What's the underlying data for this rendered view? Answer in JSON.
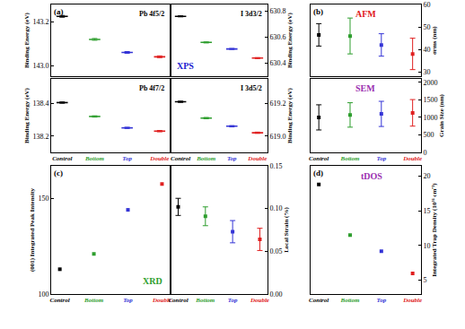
{
  "chart_data": [
    {
      "type": "scatter",
      "label": "(a)",
      "title": "Pb 4f5/2",
      "categories": [
        "Control",
        "Bottom",
        "Top",
        "Double"
      ],
      "colors": [
        "#000000",
        "#2e9e2e",
        "#3434d6",
        "#e02020"
      ],
      "values": [
        143.226,
        143.12,
        143.06,
        143.04
      ],
      "errors": [
        0.004,
        0.004,
        0.004,
        0.004
      ],
      "ylabel": "Binding Energy (eV)",
      "ylim": [
        142.95,
        143.28
      ],
      "yticks": [
        {
          "value": 143,
          "label": "143.0"
        },
        143.2
      ],
      "marker": "dash",
      "tick_labels": "y"
    },
    {
      "type": "scatter",
      "title": "I 3d3/2",
      "annotation": {
        "text": "XPS",
        "color": "#2020d0"
      },
      "categories": [
        "Control",
        "Bottom",
        "Top",
        "Double"
      ],
      "colors": [
        "#000000",
        "#2e9e2e",
        "#3434d6",
        "#e02020"
      ],
      "values": [
        630.76,
        630.56,
        630.51,
        630.44
      ],
      "errors": [
        0.004,
        0.004,
        0.004,
        0.004
      ],
      "ylabel": "Binding Energy (eV)",
      "ylim": [
        630.3,
        630.85
      ],
      "yticks": [
        630.4,
        630.6,
        630.8
      ],
      "marker": "dash",
      "tick_labels": "y"
    },
    {
      "type": "scatter",
      "title": "Pb 4f7/2",
      "categories": [
        "Control",
        "Bottom",
        "Top",
        "Double"
      ],
      "colors": [
        "#000000",
        "#2e9e2e",
        "#3434d6",
        "#e02020"
      ],
      "values": [
        138.405,
        138.32,
        138.25,
        138.23
      ],
      "errors": [
        0.004,
        0.004,
        0.004,
        0.004
      ],
      "ylabel": "Binding Energy (eV)",
      "ylim": [
        138.1,
        138.55
      ],
      "yticks": [
        138.2,
        138.4
      ],
      "marker": "dash"
    },
    {
      "type": "scatter",
      "title": "I 3d5/2",
      "categories": [
        "Control",
        "Bottom",
        "Top",
        "Double"
      ],
      "colors": [
        "#000000",
        "#2e9e2e",
        "#3434d6",
        "#e02020"
      ],
      "values": [
        619.21,
        619.11,
        619.06,
        619.02
      ],
      "errors": [
        0.004,
        0.004,
        0.004,
        0.004
      ],
      "ylabel": "Binding Energy (eV)",
      "ylim": [
        618.9,
        619.35
      ],
      "yticks": [
        {
          "value": 619,
          "label": "619.0"
        },
        619.2
      ],
      "marker": "dash"
    },
    {
      "type": "scatter",
      "label": "(b)",
      "annotation": {
        "text": "AFM",
        "color": "#e02020"
      },
      "categories": [
        "Control",
        "Bottom",
        "Top",
        "Double"
      ],
      "colors": [
        "#000000",
        "#2e9e2e",
        "#3434d6",
        "#e02020"
      ],
      "values": [
        46.5,
        46,
        42,
        38
      ],
      "errors": [
        5,
        8,
        5,
        7
      ],
      "ylabel": "σrms (nm)",
      "ylim": [
        28,
        60
      ],
      "yticks": [
        30,
        40,
        50,
        60
      ],
      "marker": "square",
      "tick_labels": "y"
    },
    {
      "type": "scatter",
      "annotation": {
        "text": "SEM",
        "color": "#9b30b0"
      },
      "categories": [
        "Control",
        "Bottom",
        "Top",
        "Double"
      ],
      "colors": [
        "#000000",
        "#2e9e2e",
        "#3434d6",
        "#e02020"
      ],
      "values": [
        1000,
        1070,
        1100,
        1130
      ],
      "errors": [
        360,
        350,
        360,
        380
      ],
      "ylabel": "Grain Size (nm)",
      "ylim": [
        0,
        2100
      ],
      "yticks": [
        0,
        500,
        1000,
        1500,
        2000
      ],
      "marker": "square"
    },
    {
      "type": "scatter",
      "label": "(c)",
      "annotation": {
        "text": "XRD",
        "color": "#2e9e2e"
      },
      "categories": [
        "Control",
        "Bottom",
        "Top",
        "Double"
      ],
      "colors": [
        "#000000",
        "#2e9e2e",
        "#3434d6",
        "#e02020"
      ],
      "values": [
        113,
        121,
        144,
        157.5
      ],
      "ylabel": "(001) Integrated Peak Intensity",
      "ylim": [
        100,
        167
      ],
      "yticks": [
        100,
        150
      ],
      "marker": "square"
    },
    {
      "type": "scatter",
      "categories": [
        "Control",
        "Bottom",
        "Top",
        "Double"
      ],
      "colors": [
        "#000000",
        "#2e9e2e",
        "#3434d6",
        "#e02020"
      ],
      "values": [
        0.102,
        0.091,
        0.073,
        0.064
      ],
      "errors": [
        0.01,
        0.011,
        0.013,
        0.013
      ],
      "ylabel": "Local Strain (%)",
      "ylim": [
        0,
        0.15
      ],
      "yticks": [
        {
          "value": 0,
          "label": "0.00"
        },
        {
          "value": 0.05,
          "label": "0.05"
        },
        {
          "value": 0.1,
          "label": "0.10"
        },
        {
          "value": 0.15,
          "label": "0.15"
        }
      ],
      "marker": "square"
    },
    {
      "type": "scatter",
      "label": "(d)",
      "annotation": {
        "text": "tDOS",
        "color": "#9b30b0"
      },
      "categories": [
        "Control",
        "Bottom",
        "Top",
        "Double"
      ],
      "colors": [
        "#000000",
        "#2e9e2e",
        "#3434d6",
        "#e02020"
      ],
      "values": [
        18.8,
        11.5,
        9.2,
        6.0
      ],
      "ylabel": "Integrated Trap Density (10¹⁶ cm⁻³)",
      "ylim": [
        3,
        21.5
      ],
      "yticks": [
        5,
        10,
        15,
        20
      ],
      "marker": "square"
    }
  ]
}
